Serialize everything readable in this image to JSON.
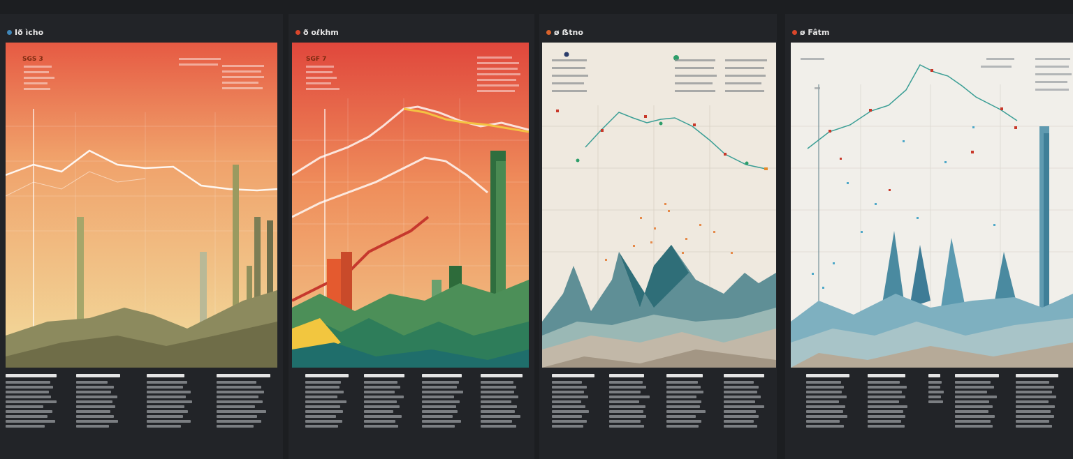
{
  "panels": [
    {
      "title": "Ið ìcho",
      "dot_color": "#3f86b8",
      "label": "SGS 3",
      "palette": "warm"
    },
    {
      "title": "ð oℓkhm",
      "dot_color": "#d9462b",
      "label": "SGF 7",
      "palette": "red"
    },
    {
      "title": "ø ẞtno",
      "dot_color": "#d9622b",
      "label": "",
      "palette": "cream"
    },
    {
      "title": "ø Fâtm",
      "dot_color": "#d9462b",
      "label": "",
      "palette": "light"
    }
  ]
}
